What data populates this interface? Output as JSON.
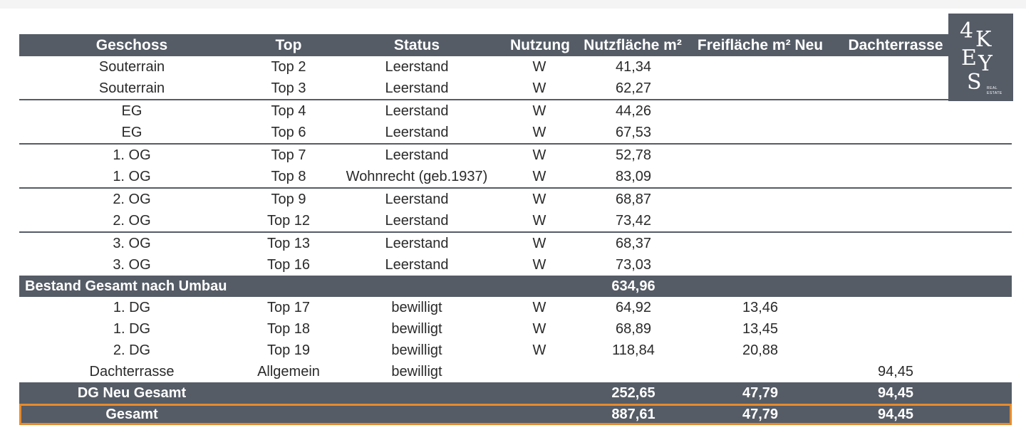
{
  "header": {
    "geschoss": "Geschoss",
    "top": "Top",
    "status": "Status",
    "nutzung": "Nutzung",
    "nutzflaeche": "Nutzfläche m²",
    "freiflaeche": "Freifläche m² Neu",
    "dachterrasse": "Dachterrasse"
  },
  "bestand_rows": [
    {
      "geschoss": "Souterrain",
      "top": "Top 2",
      "status": "Leerstand",
      "nutzung": "W",
      "nutzflaeche": "41,34",
      "freiflaeche": "",
      "dachterrasse": ""
    },
    {
      "geschoss": "Souterrain",
      "top": "Top 3",
      "status": "Leerstand",
      "nutzung": "W",
      "nutzflaeche": "62,27",
      "freiflaeche": "",
      "dachterrasse": ""
    },
    {
      "geschoss": "EG",
      "top": "Top 4",
      "status": "Leerstand",
      "nutzung": "W",
      "nutzflaeche": "44,26",
      "freiflaeche": "",
      "dachterrasse": ""
    },
    {
      "geschoss": "EG",
      "top": "Top 6",
      "status": "Leerstand",
      "nutzung": "W",
      "nutzflaeche": "67,53",
      "freiflaeche": "",
      "dachterrasse": ""
    },
    {
      "geschoss": "1. OG",
      "top": "Top 7",
      "status": "Leerstand",
      "nutzung": "W",
      "nutzflaeche": "52,78",
      "freiflaeche": "",
      "dachterrasse": ""
    },
    {
      "geschoss": "1. OG",
      "top": "Top 8",
      "status": "Wohnrecht (geb.1937)",
      "nutzung": "W",
      "nutzflaeche": "83,09",
      "freiflaeche": "",
      "dachterrasse": ""
    },
    {
      "geschoss": "2. OG",
      "top": "Top 9",
      "status": "Leerstand",
      "nutzung": "W",
      "nutzflaeche": "68,87",
      "freiflaeche": "",
      "dachterrasse": ""
    },
    {
      "geschoss": "2. OG",
      "top": "Top 12",
      "status": "Leerstand",
      "nutzung": "W",
      "nutzflaeche": "73,42",
      "freiflaeche": "",
      "dachterrasse": ""
    },
    {
      "geschoss": "3. OG",
      "top": "Top 13",
      "status": "Leerstand",
      "nutzung": "W",
      "nutzflaeche": "68,37",
      "freiflaeche": "",
      "dachterrasse": ""
    },
    {
      "geschoss": "3. OG",
      "top": "Top 16",
      "status": "Leerstand",
      "nutzung": "W",
      "nutzflaeche": "73,03",
      "freiflaeche": "",
      "dachterrasse": ""
    }
  ],
  "bestand_total": {
    "label": "Bestand Gesamt nach Umbau",
    "nutzflaeche": "634,96"
  },
  "dg_rows": [
    {
      "geschoss": "1. DG",
      "top": "Top 17",
      "status": "bewilligt",
      "nutzung": "W",
      "nutzflaeche": "64,92",
      "freiflaeche": "13,46",
      "dachterrasse": ""
    },
    {
      "geschoss": "1. DG",
      "top": "Top 18",
      "status": "bewilligt",
      "nutzung": "W",
      "nutzflaeche": "68,89",
      "freiflaeche": "13,45",
      "dachterrasse": ""
    },
    {
      "geschoss": "2. DG",
      "top": "Top 19",
      "status": "bewilligt",
      "nutzung": "W",
      "nutzflaeche": "118,84",
      "freiflaeche": "20,88",
      "dachterrasse": ""
    },
    {
      "geschoss": "Dachterrasse",
      "top": "Allgemein",
      "status": "bewilligt",
      "nutzung": "",
      "nutzflaeche": "",
      "freiflaeche": "",
      "dachterrasse": "94,45"
    }
  ],
  "dg_total": {
    "label": "DG Neu Gesamt",
    "nutzflaeche": "252,65",
    "freiflaeche": "47,79",
    "dachterrasse": "94,45"
  },
  "grand_total": {
    "label": "Gesamt",
    "nutzflaeche": "887,61",
    "freiflaeche": "47,79",
    "dachterrasse": "94,45"
  },
  "logo": {
    "text": "4KEYS",
    "subtitle": "REAL ESTATE"
  },
  "colors": {
    "band": "#555c66",
    "highlight": "#e58b2e"
  }
}
